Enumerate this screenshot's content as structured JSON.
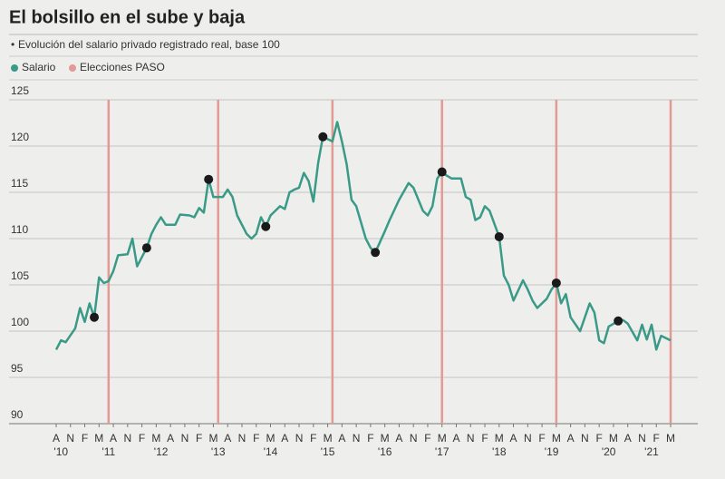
{
  "chart_data": {
    "type": "line",
    "title": "El bolsillo en el sube y baja",
    "subtitle": "Evolución del salario privado registrado real, base 100",
    "x": [
      0,
      1,
      2,
      4,
      5,
      6,
      7,
      8,
      9,
      10,
      11,
      12,
      13,
      15,
      16,
      17,
      19,
      20,
      21,
      22,
      23,
      25,
      26,
      28,
      29,
      30,
      31,
      32,
      33,
      35,
      36,
      37,
      38,
      40,
      41,
      42,
      43,
      44,
      45,
      47,
      48,
      49,
      50,
      51,
      52,
      53,
      54,
      55,
      56,
      58,
      59,
      60,
      61,
      62,
      63,
      65,
      66,
      67,
      69,
      70,
      71,
      72,
      74,
      75,
      77,
      78,
      79,
      80,
      81,
      82,
      83,
      85,
      86,
      87,
      88,
      89,
      90,
      91,
      93,
      94,
      95,
      96,
      98,
      99,
      100,
      101,
      102,
      103,
      104,
      105,
      106,
      107,
      108,
      110,
      111,
      112,
      113,
      114,
      115,
      116,
      118,
      119,
      120,
      122,
      123,
      124,
      125,
      126,
      127,
      129
    ],
    "series": [
      {
        "name": "Salario",
        "color": "#3a9a88",
        "values": [
          98,
          99,
          98.8,
          100.3,
          102.5,
          101,
          103,
          101.5,
          105.8,
          105.2,
          105.4,
          106.5,
          108.2,
          108.3,
          110,
          107,
          109,
          110.5,
          111.5,
          112.3,
          111.5,
          111.5,
          112.6,
          112.5,
          112.3,
          113.3,
          112.8,
          116.4,
          114.5,
          114.5,
          115.3,
          114.5,
          112.5,
          110.5,
          110,
          110.5,
          112.3,
          111.3,
          112.5,
          113.5,
          113.2,
          115,
          115.3,
          115.5,
          117.1,
          116.2,
          114,
          118.2,
          121,
          120.5,
          122.6,
          120.5,
          118,
          114.2,
          113.5,
          110,
          109,
          108.5,
          110.8,
          112,
          113.1,
          114.2,
          116,
          115.5,
          113,
          112.5,
          113.5,
          116.5,
          117.2,
          116.8,
          116.5,
          116.5,
          114.5,
          114.2,
          112,
          112.3,
          113.5,
          113,
          110.2,
          106,
          105,
          103.3,
          105.5,
          104.5,
          103.3,
          102.5,
          103,
          103.5,
          104.5,
          105.2,
          103,
          104,
          101.5,
          100,
          101.5,
          103,
          102,
          99,
          98.7,
          100.5,
          101.1,
          101.2,
          100.8,
          99,
          100.7,
          99.1,
          100.7,
          98,
          99.5,
          99
        ]
      }
    ],
    "paso": {
      "name": "Elecciones PASO",
      "color": "#e39a94",
      "x": [
        11,
        34,
        58,
        81,
        105,
        129
      ]
    },
    "highlight": {
      "color": "#1a1a1a",
      "x": [
        8,
        19,
        32,
        44,
        56,
        67,
        81,
        93,
        105,
        118
      ],
      "values": [
        101.5,
        109,
        116.4,
        111.3,
        121,
        108.5,
        117.2,
        110.2,
        105.2,
        101.1
      ]
    },
    "xlim": [
      0,
      129
    ],
    "xticks": [
      {
        "value": 0,
        "label": "A"
      },
      {
        "value": 3,
        "label": "N"
      },
      {
        "value": 6,
        "label": "F"
      },
      {
        "value": 9,
        "label": "M"
      },
      {
        "value": 12,
        "label": "A"
      },
      {
        "value": 15,
        "label": "N"
      },
      {
        "value": 18,
        "label": "F"
      },
      {
        "value": 21,
        "label": "M"
      },
      {
        "value": 24,
        "label": "A"
      },
      {
        "value": 27,
        "label": "N"
      },
      {
        "value": 30,
        "label": "F"
      },
      {
        "value": 33,
        "label": "M"
      },
      {
        "value": 36,
        "label": "A"
      },
      {
        "value": 39,
        "label": "N"
      },
      {
        "value": 42,
        "label": "F"
      },
      {
        "value": 45,
        "label": "M"
      },
      {
        "value": 48,
        "label": "A"
      },
      {
        "value": 51,
        "label": "N"
      },
      {
        "value": 54,
        "label": "F"
      },
      {
        "value": 57,
        "label": "M"
      },
      {
        "value": 60,
        "label": "A"
      },
      {
        "value": 63,
        "label": "N"
      },
      {
        "value": 66,
        "label": "F"
      },
      {
        "value": 69,
        "label": "M"
      },
      {
        "value": 72,
        "label": "A"
      },
      {
        "value": 75,
        "label": "N"
      },
      {
        "value": 78,
        "label": "F"
      },
      {
        "value": 81,
        "label": "M"
      },
      {
        "value": 84,
        "label": "A"
      },
      {
        "value": 87,
        "label": "N"
      },
      {
        "value": 90,
        "label": "F"
      },
      {
        "value": 93,
        "label": "M"
      },
      {
        "value": 96,
        "label": "A"
      },
      {
        "value": 99,
        "label": "N"
      },
      {
        "value": 102,
        "label": "F"
      },
      {
        "value": 105,
        "label": "M"
      },
      {
        "value": 108,
        "label": "A"
      },
      {
        "value": 111,
        "label": "N"
      },
      {
        "value": 114,
        "label": "F"
      },
      {
        "value": 117,
        "label": "M"
      },
      {
        "value": 120,
        "label": "A"
      },
      {
        "value": 123,
        "label": "N"
      },
      {
        "value": 126,
        "label": "F"
      },
      {
        "value": 129,
        "label": "M"
      }
    ],
    "year_ticks": [
      {
        "value": 1,
        "label": "'10"
      },
      {
        "value": 11,
        "label": "'11"
      },
      {
        "value": 22,
        "label": "'12"
      },
      {
        "value": 34,
        "label": "'13"
      },
      {
        "value": 45,
        "label": "'14"
      },
      {
        "value": 57,
        "label": "'15"
      },
      {
        "value": 69,
        "label": "'16"
      },
      {
        "value": 81,
        "label": "'17"
      },
      {
        "value": 93,
        "label": "'18"
      },
      {
        "value": 104,
        "label": "'19"
      },
      {
        "value": 116,
        "label": "'20"
      },
      {
        "value": 125,
        "label": "'21"
      }
    ],
    "ylim": [
      90,
      125
    ],
    "yticks": [
      90,
      95,
      100,
      105,
      110,
      115,
      120,
      125
    ],
    "grid": true
  }
}
